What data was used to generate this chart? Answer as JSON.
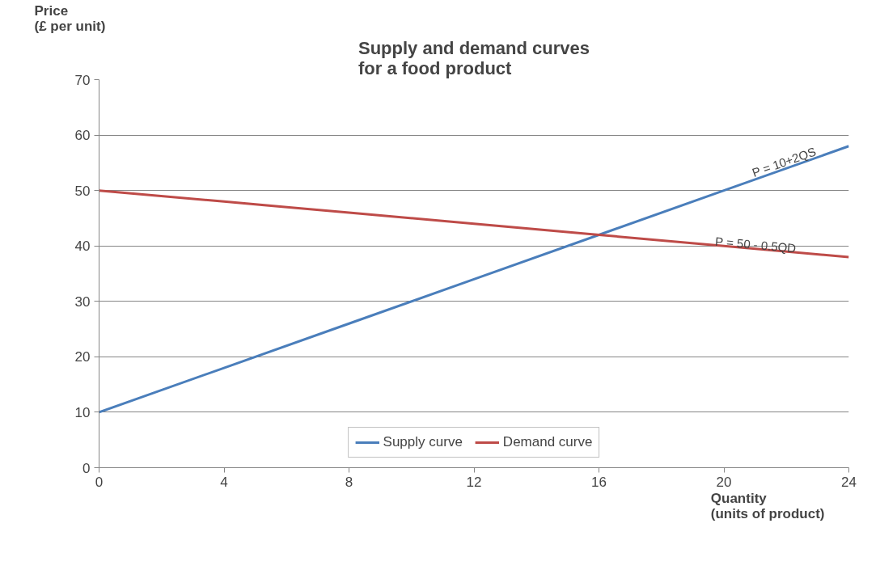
{
  "chart_data": {
    "type": "line",
    "title": "Supply and demand curves\nfor a food product",
    "xlabel": "Quantity\n(units of product)",
    "ylabel": "Price\n(£ per unit)",
    "x": [
      0,
      4,
      8,
      12,
      16,
      20,
      24
    ],
    "series": [
      {
        "name": "Supply curve",
        "color": "#4a7ebb",
        "values": [
          10,
          18,
          26,
          34,
          42,
          50,
          58
        ]
      },
      {
        "name": "Demand curve",
        "color": "#be4b48",
        "values": [
          50,
          48,
          46,
          44,
          42,
          40,
          38
        ]
      }
    ],
    "xlim": [
      0,
      24
    ],
    "xticks": [
      0,
      4,
      8,
      12,
      16,
      20,
      24
    ],
    "ylim": [
      0,
      70
    ],
    "yticks": [
      0,
      10,
      20,
      30,
      40,
      50,
      60,
      70
    ],
    "grid": "y",
    "legend": "bottom",
    "marker": "none",
    "line_style": "solid",
    "annotations": [
      {
        "text": "P = 10+2QS",
        "x": 22,
        "y": 54
      },
      {
        "text": "P = 50 - 0.5QD",
        "x": 21,
        "y": 39
      }
    ]
  }
}
